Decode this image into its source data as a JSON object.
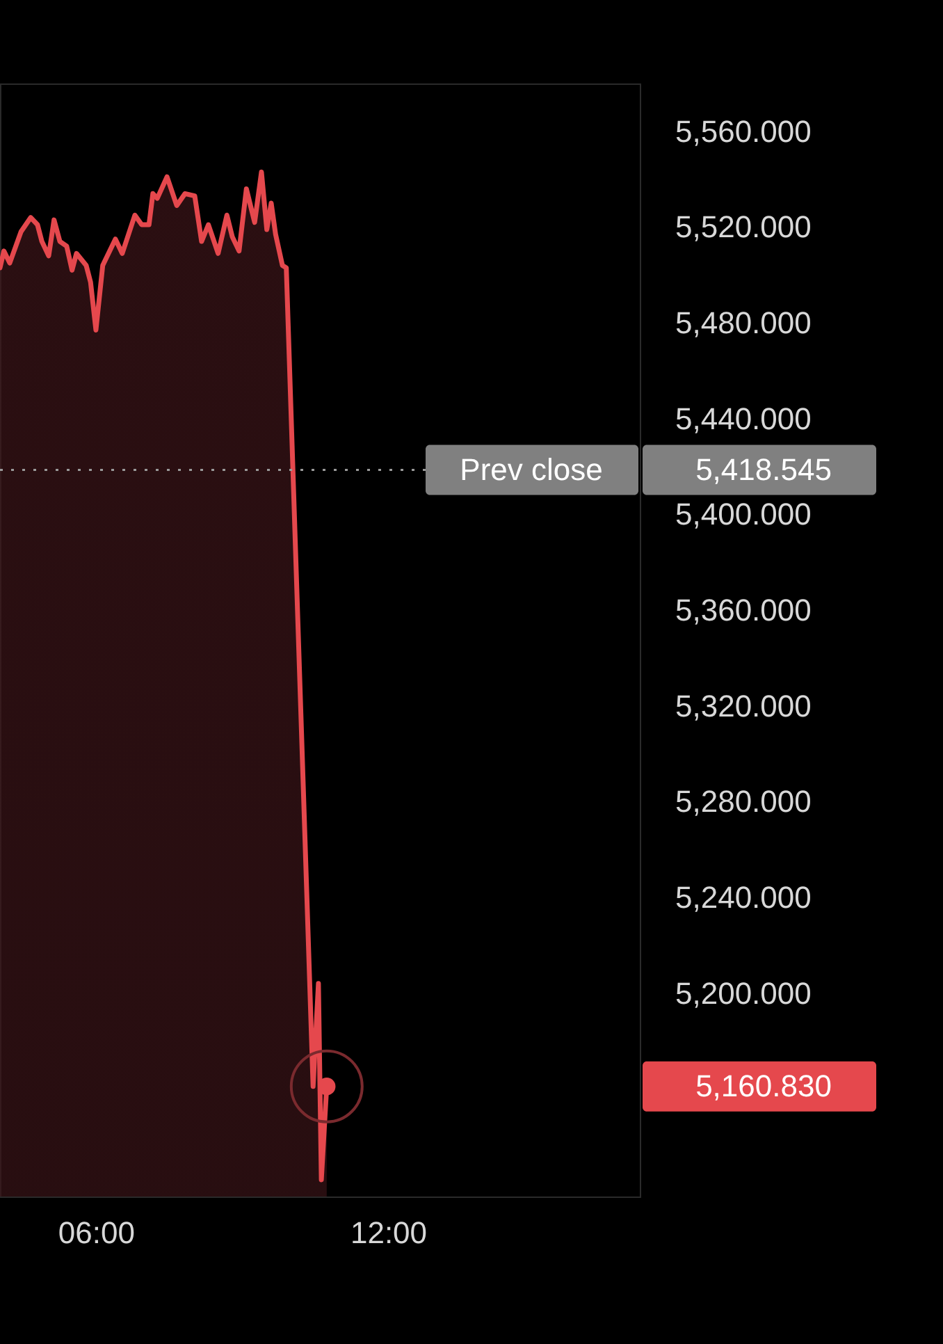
{
  "chart_data": {
    "type": "area",
    "x": [
      4.03,
      4.11,
      4.23,
      4.46,
      4.66,
      4.8,
      4.89,
      5.03,
      5.14,
      5.26,
      5.4,
      5.51,
      5.6,
      5.8,
      5.89,
      6.0,
      6.14,
      6.4,
      6.54,
      6.8,
      6.94,
      7.09,
      7.17,
      7.26,
      7.46,
      7.66,
      7.83,
      8.03,
      8.17,
      8.31,
      8.51,
      8.69,
      8.8,
      8.94,
      9.09,
      9.26,
      9.4,
      9.51,
      9.6,
      9.69,
      9.83,
      9.91,
      10.46,
      10.57,
      10.63,
      10.74
    ],
    "series": [
      {
        "color": "#e5484d",
        "values": [
          5503,
          5510,
          5505,
          5518,
          5524,
          5521,
          5514,
          5508,
          5523,
          5514,
          5512,
          5502,
          5509,
          5504,
          5497,
          5477,
          5504,
          5515,
          5509,
          5525,
          5521,
          5521,
          5534,
          5532,
          5541,
          5529,
          5534,
          5533,
          5514,
          5521,
          5509,
          5525,
          5516,
          5510,
          5536,
          5522,
          5543,
          5519,
          5530,
          5517,
          5504,
          5503,
          5161,
          5204,
          5122,
          5161
        ]
      }
    ],
    "xlim": [
      4.03,
      17.17
    ],
    "xticks": [
      {
        "value": 6,
        "label": "06:00"
      },
      {
        "value": 12,
        "label": "12:00"
      }
    ],
    "ylim": [
      5115,
      5580
    ],
    "yticks": [
      {
        "value": 5200,
        "label": "5,200.000"
      },
      {
        "value": 5240,
        "label": "5,240.000"
      },
      {
        "value": 5280,
        "label": "5,280.000"
      },
      {
        "value": 5320,
        "label": "5,320.000"
      },
      {
        "value": 5360,
        "label": "5,360.000"
      },
      {
        "value": 5400,
        "label": "5,400.000"
      },
      {
        "value": 5440,
        "label": "5,440.000"
      },
      {
        "value": 5480,
        "label": "5,480.000"
      },
      {
        "value": 5520,
        "label": "5,520.000"
      },
      {
        "value": 5560,
        "label": "5,560.000"
      }
    ],
    "ref_lines": [
      {
        "axis": "y",
        "value": 5418.545,
        "label": "Prev close",
        "color": "#9a9a9a",
        "line_style": "dotted"
      }
    ],
    "annotations": [
      "5,418.545",
      "5,160.830"
    ]
  }
}
